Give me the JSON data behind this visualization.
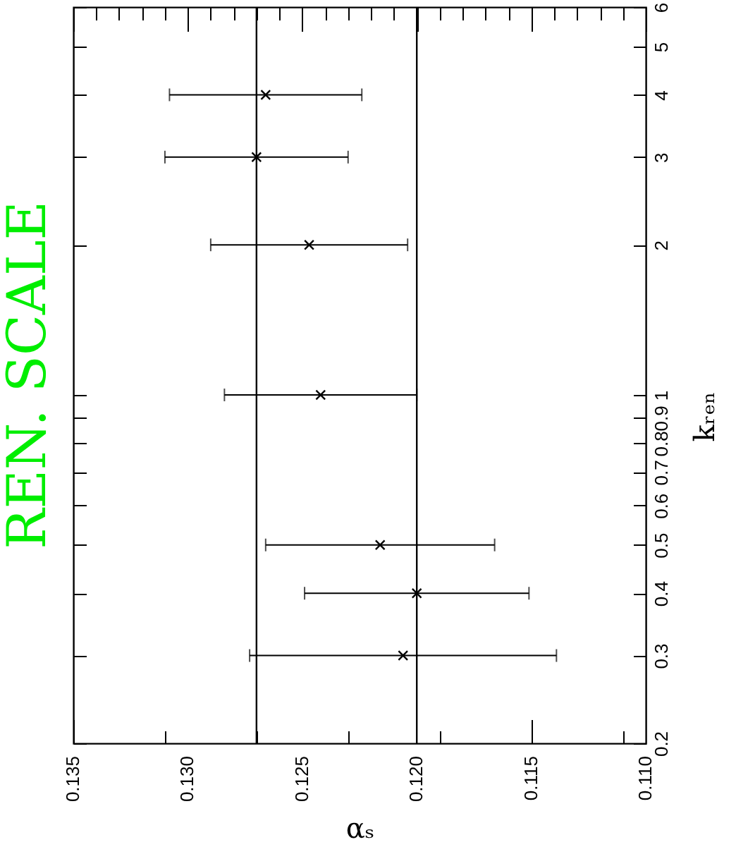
{
  "chart_data": {
    "type": "scatter",
    "title": "REN. SCALE",
    "xlabel": "αₛ",
    "ylabel": "kᵣₑₙ",
    "x": [
      0.1206,
      0.12,
      0.1216,
      0.1242,
      0.1247,
      0.127,
      0.1266
    ],
    "values": [
      0.3,
      0.4,
      0.5,
      1,
      2,
      3,
      4
    ],
    "xerrors": [
      0.0067,
      0.0049,
      0.005,
      0.0042,
      0.0043,
      0.004,
      0.0042
    ],
    "color": "#000000",
    "marker": "cross",
    "log": "y",
    "grid": false,
    "ylim": [
      0.2,
      6
    ],
    "yticks": [
      0.2,
      0.3,
      0.4,
      0.5,
      0.6,
      0.7,
      0.8,
      0.9,
      1,
      2,
      3,
      4,
      5,
      6
    ],
    "xlim": [
      0.135,
      0.11
    ],
    "xticks": [
      0.135,
      {
        "value": 0.134,
        "label": null
      },
      {
        "value": 0.133,
        "label": null
      },
      {
        "value": 0.132,
        "label": null
      },
      {
        "value": 0.131,
        "label": null
      },
      {
        "value": 0.13,
        "label": "0.130"
      },
      {
        "value": 0.129,
        "label": null
      },
      {
        "value": 0.128,
        "label": null
      },
      {
        "value": 0.127,
        "label": null
      },
      {
        "value": 0.126,
        "label": null
      },
      0.125,
      {
        "value": 0.124,
        "label": null
      },
      {
        "value": 0.123,
        "label": null
      },
      {
        "value": 0.122,
        "label": null
      },
      {
        "value": 0.121,
        "label": null
      },
      {
        "value": 0.12,
        "label": "0.120"
      },
      {
        "value": 0.119,
        "label": null
      },
      {
        "value": 0.118,
        "label": null
      },
      {
        "value": 0.117,
        "label": null
      },
      {
        "value": 0.116,
        "label": null
      },
      0.115,
      {
        "value": 0.114,
        "label": null
      },
      {
        "value": 0.113,
        "label": null
      },
      {
        "value": 0.112,
        "label": null
      },
      {
        "value": 0.111,
        "label": null
      },
      {
        "value": 0.11,
        "label": "0.110"
      }
    ],
    "ref_lines": [
      {
        "axis": "x",
        "value": 0.127,
        "color": "#000000"
      },
      {
        "axis": "x",
        "value": 0.12,
        "color": "#000000"
      }
    ]
  }
}
